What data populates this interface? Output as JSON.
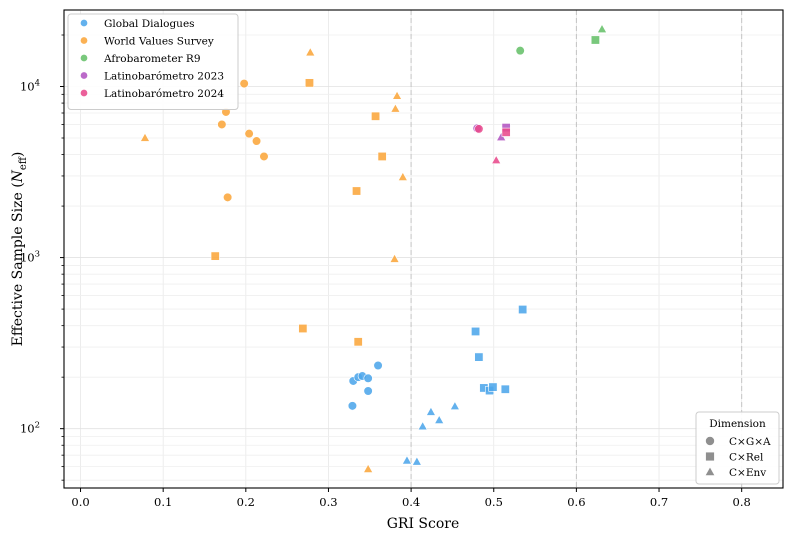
{
  "chart_data": {
    "type": "scatter",
    "title": "",
    "xlabel": "GRI Score",
    "ylabel": "Effective Sample Size (",
    "ylabel_symbol": "N",
    "ylabel_sub": "eff",
    "ylabel_close": ")",
    "xlim": [
      -0.02,
      0.85
    ],
    "ylim": [
      45,
      28000
    ],
    "yscale": "log",
    "x_ticks": [
      0.0,
      0.1,
      0.2,
      0.3,
      0.4,
      0.5,
      0.6,
      0.7,
      0.8
    ],
    "x_tick_labels": [
      "0.0",
      "0.1",
      "0.2",
      "0.3",
      "0.4",
      "0.5",
      "0.6",
      "0.7",
      "0.8"
    ],
    "y_ticks": [
      100,
      1000,
      10000
    ],
    "y_tick_base": "10",
    "y_tick_exponents": [
      "2",
      "3",
      "4"
    ],
    "vlines": [
      0.4,
      0.6,
      0.8
    ],
    "series": [
      {
        "name": "Global Dialogues",
        "color": "#4da6ea",
        "points": [
          {
            "x": 0.33,
            "y": 190,
            "shape": "circle"
          },
          {
            "x": 0.336,
            "y": 200,
            "shape": "circle"
          },
          {
            "x": 0.341,
            "y": 203,
            "shape": "circle"
          },
          {
            "x": 0.348,
            "y": 197,
            "shape": "circle"
          },
          {
            "x": 0.348,
            "y": 166,
            "shape": "circle"
          },
          {
            "x": 0.36,
            "y": 234,
            "shape": "circle"
          },
          {
            "x": 0.329,
            "y": 136,
            "shape": "circle"
          },
          {
            "x": 0.478,
            "y": 370,
            "shape": "square"
          },
          {
            "x": 0.482,
            "y": 262,
            "shape": "square"
          },
          {
            "x": 0.488,
            "y": 173,
            "shape": "square"
          },
          {
            "x": 0.495,
            "y": 167,
            "shape": "square"
          },
          {
            "x": 0.499,
            "y": 175,
            "shape": "square"
          },
          {
            "x": 0.514,
            "y": 170,
            "shape": "square"
          },
          {
            "x": 0.535,
            "y": 497,
            "shape": "square"
          },
          {
            "x": 0.414,
            "y": 103,
            "shape": "triangle"
          },
          {
            "x": 0.424,
            "y": 125,
            "shape": "triangle"
          },
          {
            "x": 0.434,
            "y": 112,
            "shape": "triangle"
          },
          {
            "x": 0.453,
            "y": 135,
            "shape": "triangle"
          },
          {
            "x": 0.395,
            "y": 65,
            "shape": "triangle"
          },
          {
            "x": 0.407,
            "y": 64,
            "shape": "triangle"
          }
        ]
      },
      {
        "name": "World Values Survey",
        "color": "#fba63b",
        "points": [
          {
            "x": 0.198,
            "y": 10400,
            "shape": "circle"
          },
          {
            "x": 0.176,
            "y": 7100,
            "shape": "circle"
          },
          {
            "x": 0.171,
            "y": 6000,
            "shape": "circle"
          },
          {
            "x": 0.204,
            "y": 5300,
            "shape": "circle"
          },
          {
            "x": 0.213,
            "y": 4800,
            "shape": "circle"
          },
          {
            "x": 0.222,
            "y": 3900,
            "shape": "circle"
          },
          {
            "x": 0.178,
            "y": 2250,
            "shape": "circle"
          },
          {
            "x": 0.277,
            "y": 10500,
            "shape": "square"
          },
          {
            "x": 0.357,
            "y": 6700,
            "shape": "square"
          },
          {
            "x": 0.365,
            "y": 3900,
            "shape": "square"
          },
          {
            "x": 0.334,
            "y": 2450,
            "shape": "square"
          },
          {
            "x": 0.163,
            "y": 1020,
            "shape": "square"
          },
          {
            "x": 0.269,
            "y": 385,
            "shape": "square"
          },
          {
            "x": 0.336,
            "y": 322,
            "shape": "square"
          },
          {
            "x": 0.278,
            "y": 15800,
            "shape": "triangle"
          },
          {
            "x": 0.383,
            "y": 8800,
            "shape": "triangle"
          },
          {
            "x": 0.381,
            "y": 7400,
            "shape": "triangle"
          },
          {
            "x": 0.078,
            "y": 5000,
            "shape": "triangle"
          },
          {
            "x": 0.39,
            "y": 2950,
            "shape": "triangle"
          },
          {
            "x": 0.38,
            "y": 980,
            "shape": "triangle"
          },
          {
            "x": 0.348,
            "y": 58,
            "shape": "triangle"
          }
        ]
      },
      {
        "name": "Afrobarometer R9",
        "color": "#66c06a",
        "points": [
          {
            "x": 0.532,
            "y": 16200,
            "shape": "circle"
          },
          {
            "x": 0.623,
            "y": 18700,
            "shape": "square"
          },
          {
            "x": 0.631,
            "y": 21600,
            "shape": "triangle"
          }
        ]
      },
      {
        "name": "Latinobarómetro 2023",
        "color": "#b255c2",
        "points": [
          {
            "x": 0.48,
            "y": 5700,
            "shape": "circle"
          },
          {
            "x": 0.515,
            "y": 5750,
            "shape": "square"
          },
          {
            "x": 0.509,
            "y": 5050,
            "shape": "triangle"
          }
        ]
      },
      {
        "name": "Latinobarómetro 2024",
        "color": "#e84a8c",
        "points": [
          {
            "x": 0.482,
            "y": 5650,
            "shape": "circle"
          },
          {
            "x": 0.515,
            "y": 5400,
            "shape": "square"
          },
          {
            "x": 0.503,
            "y": 3700,
            "shape": "triangle"
          }
        ]
      }
    ],
    "legend_series": [
      "Global Dialogues",
      "World Values Survey",
      "Afrobarometer R9",
      "Latinobarómetro 2023",
      "Latinobarómetro 2024"
    ],
    "legend_series_location": "upper-left",
    "legend_shapes_title": "Dimension",
    "legend_shapes": [
      {
        "label": "C×G×A",
        "shape": "circle"
      },
      {
        "label": "C×Rel",
        "shape": "square"
      },
      {
        "label": "C×Env",
        "shape": "triangle"
      }
    ],
    "legend_shapes_location": "lower-right",
    "legend_shape_color": "#808080"
  }
}
